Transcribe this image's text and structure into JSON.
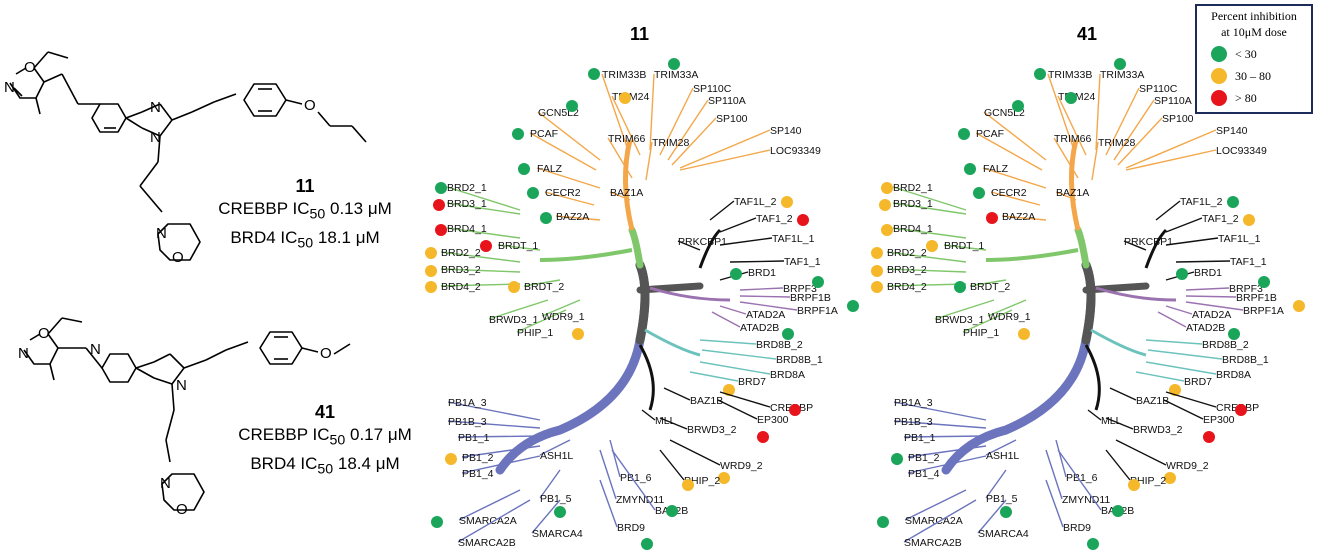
{
  "compounds": [
    {
      "id": "11",
      "line1_name": "CREBBP IC",
      "line1_sub": "50",
      "line1_val": " 0.13 μM",
      "line2_name": "BRD4  IC",
      "line2_sub": "50",
      "line2_val": "  18.1 μM"
    },
    {
      "id": "41",
      "line1_name": "CREBBP IC",
      "line1_sub": "50",
      "line1_val": " 0.17 μM",
      "line2_name": "BRD4  IC",
      "line2_sub": "50",
      "line2_val": "  18.4 μM"
    }
  ],
  "atoms": {
    "n": "N",
    "o": "O"
  },
  "legend": {
    "title_line1": "Percent inhibition",
    "title_line2": "at 10μM dose",
    "items": [
      {
        "label": "< 30",
        "color": "#1aa55a"
      },
      {
        "label": "30 – 80",
        "color": "#f5b82a"
      },
      {
        "label": "> 80",
        "color": "#e8141c"
      }
    ]
  },
  "colors": {
    "green": "#1aa55a",
    "yellow": "#f5b82a",
    "red": "#e8141c",
    "trunk": "#555555",
    "orange": "#f4a74a",
    "lightgreen": "#7fc76a",
    "black": "#111111",
    "purple": "#9b72b0",
    "teal": "#6cc2bc",
    "blue": "#6b74bd"
  },
  "trees": [
    {
      "title": "11",
      "status": {
        "TRIM33B": "g",
        "TRIM33A": "g",
        "TRIM24": "y",
        "SP110C": "",
        "SP110A": "",
        "SP100": "",
        "SP140": "",
        "LOC93349": "",
        "GCN5L2": "g",
        "PCAF": "g",
        "FALZ": "g",
        "TRIM66": "",
        "TRIM28": "",
        "BAZ1A": "",
        "CECR2": "g",
        "BAZ2A": "g",
        "BRD2_1": "g",
        "BRD3_1": "r",
        "BRD4_1": "r",
        "BRDT_1": "r",
        "BRD2_2": "y",
        "BRD3_2": "y",
        "BRD4_2": "y",
        "BRDT_2": "y",
        "BRWD3_1": "",
        "PHIP_1": "",
        "WDR9_1": "y",
        "TAF1L_2": "y",
        "TAF1_2": "r",
        "TAF1L_1": "",
        "TAF1_1": "",
        "PRKCBP1": "",
        "BRD1": "g",
        "BRPF3": "g",
        "BRPF1B": "g",
        "BRPF1A": "",
        "ATAD2A": "",
        "ATAD2B": "g",
        "BRD8B_2": "",
        "BRD8B_1": "",
        "BRD8A": "",
        "BRD7": "y",
        "CREBBP": "r",
        "EP300": "r",
        "BAZ1B": "",
        "MLL": "",
        "BRWD3_2": "",
        "WRD9_2": "y",
        "PHIP_2": "y",
        "PB1A_3": "",
        "PB1B_3": "",
        "PB1_1": "",
        "PB1_2": "y",
        "PB1_4": "",
        "ASH1L": "",
        "PB1_6": "",
        "ZMYND11": "",
        "BAZ2B": "g",
        "PB1_5": "g",
        "SMARCA2A": "g",
        "SMARCA2B": "",
        "SMARCA4": "",
        "BRD9": "g"
      }
    },
    {
      "title": "41",
      "status": {
        "TRIM33B": "g",
        "TRIM33A": "g",
        "TRIM24": "g",
        "SP110C": "",
        "SP110A": "",
        "SP100": "",
        "SP140": "",
        "LOC93349": "",
        "GCN5L2": "g",
        "PCAF": "g",
        "FALZ": "g",
        "TRIM66": "",
        "TRIM28": "",
        "BAZ1A": "",
        "CECR2": "g",
        "BAZ2A": "r",
        "BRD2_1": "y",
        "BRD3_1": "y",
        "BRD4_1": "y",
        "BRDT_1": "y",
        "BRD2_2": "y",
        "BRD3_2": "y",
        "BRD4_2": "y",
        "BRDT_2": "g",
        "BRWD3_1": "",
        "PHIP_1": "",
        "WDR9_1": "y",
        "TAF1L_2": "g",
        "TAF1_2": "y",
        "TAF1L_1": "",
        "TAF1_1": "",
        "PRKCBP1": "",
        "BRD1": "g",
        "BRPF3": "g",
        "BRPF1B": "y",
        "BRPF1A": "",
        "ATAD2A": "",
        "ATAD2B": "g",
        "BRD8B_2": "",
        "BRD8B_1": "",
        "BRD8A": "",
        "BRD7": "y",
        "CREBBP": "r",
        "EP300": "r",
        "BAZ1B": "",
        "MLL": "",
        "BRWD3_2": "",
        "WRD9_2": "y",
        "PHIP_2": "y",
        "PB1A_3": "",
        "PB1B_3": "",
        "PB1_1": "",
        "PB1_2": "g",
        "PB1_4": "",
        "ASH1L": "",
        "PB1_6": "",
        "ZMYND11": "",
        "BAZ2B": "g",
        "PB1_5": "g",
        "SMARCA2A": "g",
        "SMARCA2B": "",
        "SMARCA4": "",
        "BRD9": "g"
      }
    }
  ]
}
